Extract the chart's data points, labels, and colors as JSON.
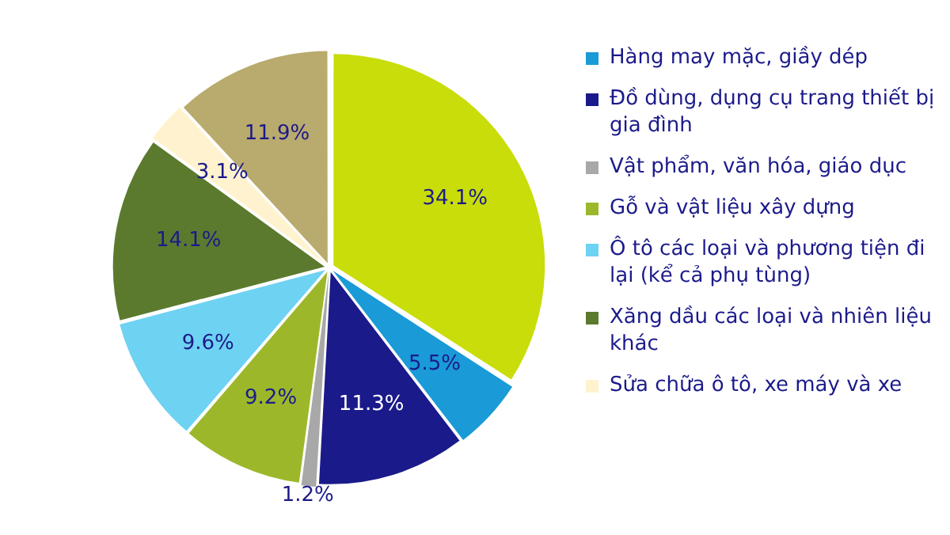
{
  "chart_data": {
    "type": "pie",
    "categories": [
      null,
      "Hàng may mặc, giầy dép",
      "Đồ dùng, dụng cụ trang thiết bị gia đình",
      "Vật phẩm, văn hóa, giáo dục",
      "Gỗ và vật liệu xây dựng",
      "Ô tô các loại và phương tiện đi lại (kể cả phụ tùng)",
      "Xăng dầu các loại và nhiên liệu khác",
      "Sửa chữa ô tô, xe máy và xe",
      null
    ],
    "values": [
      34.1,
      5.5,
      11.3,
      1.2,
      9.2,
      9.6,
      14.1,
      3.1,
      11.9
    ],
    "colors": [
      "#c8dd0a",
      "#1a9ad6",
      "#1b1a8a",
      "#a8a8a8",
      "#9cb82a",
      "#6ed2f2",
      "#5b7a2e",
      "#fff3cf",
      "#b9aa6e"
    ],
    "value_labels": [
      "34.1%",
      "5.5%",
      "11.3%",
      "1.2%",
      "9.2%",
      "9.6%",
      "14.1%",
      "3.1%",
      "11.9%"
    ],
    "legend": "right"
  }
}
